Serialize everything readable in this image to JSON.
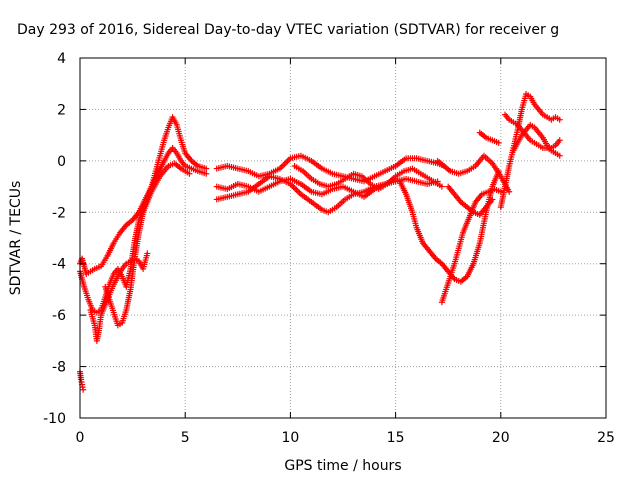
{
  "chart_data": {
    "type": "scatter",
    "title": "Day 293 of 2016, Sidereal Day-to-day VTEC variation (SDTVAR) for receiver g",
    "xlabel": "GPS time / hours",
    "ylabel": "SDTVAR / TECUs",
    "xlim": [
      0,
      25
    ],
    "ylim": [
      -10,
      4
    ],
    "x_ticks": [
      0,
      5,
      10,
      15,
      20,
      25
    ],
    "y_ticks": [
      -10,
      -8,
      -6,
      -4,
      -2,
      0,
      2,
      4
    ],
    "grid": true,
    "marker": "+",
    "color": "#ff0000",
    "series": [
      {
        "x": [
          0.0,
          0.1,
          0.2,
          0.3,
          0.5,
          0.7,
          1.0,
          1.3,
          1.6,
          1.9,
          2.2,
          2.5,
          2.8,
          3.1,
          3.4,
          3.7,
          4.0,
          4.2,
          4.4,
          4.6,
          4.8,
          5.0,
          5.3,
          5.6,
          6.0
        ],
        "y": [
          -4.0,
          -3.8,
          -4.1,
          -4.4,
          -4.3,
          -4.2,
          -4.1,
          -3.7,
          -3.2,
          -2.8,
          -2.5,
          -2.3,
          -2.0,
          -1.5,
          -1.0,
          -0.5,
          0.0,
          0.3,
          0.5,
          0.3,
          0.0,
          -0.2,
          -0.3,
          -0.4,
          -0.5
        ]
      },
      {
        "x": [
          0.0,
          0.1,
          0.2,
          0.4,
          0.6,
          0.8,
          1.0,
          1.2,
          1.4,
          1.6,
          1.8,
          2.0,
          2.2,
          2.4,
          2.6,
          2.8,
          3.0,
          3.2,
          3.4,
          3.6,
          3.8,
          4.0,
          4.2,
          4.4,
          4.6,
          4.8,
          5.0,
          5.3,
          5.6,
          6.0
        ],
        "y": [
          -4.3,
          -4.6,
          -4.9,
          -5.4,
          -5.8,
          -5.9,
          -5.8,
          -5.3,
          -4.8,
          -4.4,
          -4.2,
          -4.5,
          -4.9,
          -4.2,
          -3.1,
          -2.3,
          -1.9,
          -1.5,
          -1.0,
          -0.4,
          0.2,
          0.8,
          1.3,
          1.7,
          1.4,
          0.8,
          0.3,
          0.0,
          -0.2,
          -0.3
        ]
      },
      {
        "x": [
          0.5,
          0.7,
          0.8,
          0.9,
          1.0,
          1.2,
          1.4,
          1.6,
          1.8,
          2.0,
          2.2,
          2.4,
          2.6,
          2.8,
          3.0,
          3.2
        ],
        "y": [
          -5.8,
          -6.4,
          -7.0,
          -6.6,
          -6.0,
          -5.6,
          -5.2,
          -4.8,
          -4.5,
          -4.2,
          -4.0,
          -3.9,
          -3.8,
          -3.9,
          -4.2,
          -3.6
        ]
      },
      {
        "x": [
          1.2,
          1.4,
          1.6,
          1.8,
          2.0,
          2.2,
          2.4,
          2.6,
          2.8,
          3.0,
          3.2,
          3.4,
          3.6,
          3.8,
          4.0,
          4.2,
          4.5,
          4.8,
          5.2
        ],
        "y": [
          -4.9,
          -5.4,
          -5.9,
          -6.4,
          -6.3,
          -5.8,
          -5.0,
          -3.8,
          -2.8,
          -2.0,
          -1.6,
          -1.2,
          -0.9,
          -0.6,
          -0.4,
          -0.2,
          -0.1,
          -0.3,
          -0.5
        ]
      },
      {
        "x": [
          0.0,
          0.05,
          0.1,
          0.15
        ],
        "y": [
          -8.2,
          -8.5,
          -8.7,
          -8.9
        ]
      },
      {
        "x": [
          6.5,
          7.0,
          7.5,
          8.0,
          8.5,
          9.0,
          9.5,
          10.0,
          10.5,
          11.0,
          11.5,
          12.0,
          12.5,
          13.0,
          13.5,
          14.0,
          14.5,
          15.0,
          15.5,
          16.0,
          16.5,
          17.0,
          17.3
        ],
        "y": [
          -0.3,
          -0.2,
          -0.3,
          -0.4,
          -0.6,
          -0.5,
          -0.3,
          0.1,
          0.2,
          0.0,
          -0.3,
          -0.5,
          -0.6,
          -0.7,
          -0.8,
          -0.6,
          -0.4,
          -0.2,
          0.1,
          0.1,
          0.0,
          -0.1,
          -0.2
        ]
      },
      {
        "x": [
          6.5,
          7.0,
          7.5,
          8.0,
          8.5,
          9.0,
          9.5,
          10.0,
          10.5,
          11.0,
          11.5,
          12.0,
          12.5,
          13.0,
          13.5,
          14.0,
          14.5,
          15.0,
          15.5,
          16.0,
          16.5,
          17.0
        ],
        "y": [
          -1.0,
          -1.1,
          -0.9,
          -1.0,
          -1.2,
          -1.0,
          -0.8,
          -0.7,
          -0.9,
          -1.2,
          -1.3,
          -1.1,
          -1.0,
          -1.2,
          -1.4,
          -1.1,
          -0.9,
          -0.8,
          -0.7,
          -0.8,
          -0.9,
          -0.8
        ]
      },
      {
        "x": [
          6.5,
          7.0,
          7.5,
          8.0,
          8.5,
          9.0,
          9.5,
          10.0,
          10.5,
          11.0,
          11.5,
          11.8,
          12.2,
          12.6,
          13.0,
          13.5,
          14.0,
          14.5,
          15.0
        ],
        "y": [
          -1.5,
          -1.4,
          -1.3,
          -1.2,
          -0.9,
          -0.6,
          -0.7,
          -0.9,
          -1.3,
          -1.6,
          -1.9,
          -2.0,
          -1.8,
          -1.5,
          -1.3,
          -1.2,
          -1.0,
          -0.9,
          -0.7
        ]
      },
      {
        "x": [
          10.2,
          10.6,
          11.0,
          11.4,
          11.8,
          12.2,
          12.6,
          13.0,
          13.4,
          13.8,
          14.2,
          14.6,
          15.0,
          15.4,
          15.8,
          16.2,
          16.6,
          17.0,
          17.2
        ],
        "y": [
          -0.2,
          -0.4,
          -0.7,
          -0.9,
          -1.0,
          -0.9,
          -0.7,
          -0.5,
          -0.6,
          -0.9,
          -1.1,
          -0.9,
          -0.6,
          -0.4,
          -0.3,
          -0.5,
          -0.7,
          -0.9,
          -1.0
        ]
      },
      {
        "x": [
          15.2,
          15.5,
          15.8,
          16.0,
          16.3,
          16.6,
          16.9,
          17.2,
          17.5,
          17.8,
          18.1,
          18.4,
          18.7,
          19.0,
          19.3,
          19.6,
          19.9
        ],
        "y": [
          -0.8,
          -1.3,
          -2.0,
          -2.6,
          -3.2,
          -3.5,
          -3.8,
          -4.0,
          -4.3,
          -4.6,
          -4.7,
          -4.5,
          -4.0,
          -3.2,
          -2.0,
          -1.0,
          -0.4
        ]
      },
      {
        "x": [
          17.2,
          17.4,
          17.6,
          17.8,
          18.0,
          18.2,
          18.5,
          18.8,
          19.1,
          19.4,
          19.7,
          20.0
        ],
        "y": [
          -5.5,
          -5.0,
          -4.5,
          -4.0,
          -3.4,
          -2.8,
          -2.2,
          -1.6,
          -1.3,
          -1.2,
          -1.1,
          -1.2
        ]
      },
      {
        "x": [
          17.0,
          17.3,
          17.6,
          18.0,
          18.4,
          18.8,
          19.2,
          19.6,
          20.0,
          20.4
        ],
        "y": [
          0.0,
          -0.2,
          -0.4,
          -0.5,
          -0.4,
          -0.2,
          0.2,
          -0.1,
          -0.6,
          -1.2
        ]
      },
      {
        "x": [
          17.5,
          17.8,
          18.1,
          18.4,
          18.7,
          19.0,
          19.3,
          19.6
        ],
        "y": [
          -1.0,
          -1.3,
          -1.6,
          -1.8,
          -2.0,
          -2.1,
          -1.8,
          -1.5
        ]
      },
      {
        "x": [
          19.0,
          19.3,
          19.6,
          19.9
        ],
        "y": [
          1.1,
          0.9,
          0.8,
          0.7
        ]
      },
      {
        "x": [
          20.0,
          20.2,
          20.4,
          20.6,
          20.8,
          21.0,
          21.2,
          21.4,
          21.6,
          21.8,
          22.0,
          22.2,
          22.4,
          22.6,
          22.8
        ],
        "y": [
          -1.8,
          -1.0,
          -0.2,
          0.5,
          1.2,
          2.0,
          2.6,
          2.5,
          2.2,
          2.0,
          1.8,
          1.7,
          1.6,
          1.7,
          1.6
        ]
      },
      {
        "x": [
          20.2,
          20.4,
          20.6,
          20.8,
          21.0,
          21.2,
          21.4,
          21.6,
          21.8,
          22.0,
          22.2,
          22.4,
          22.6,
          22.8
        ],
        "y": [
          1.8,
          1.6,
          1.5,
          1.4,
          1.2,
          1.0,
          0.8,
          0.7,
          0.6,
          0.5,
          0.5,
          0.4,
          0.3,
          0.2
        ]
      },
      {
        "x": [
          20.6,
          20.8,
          21.0,
          21.2,
          21.4,
          21.6,
          21.8,
          22.0,
          22.2,
          22.4,
          22.6,
          22.8
        ],
        "y": [
          0.4,
          0.7,
          1.0,
          1.2,
          1.4,
          1.3,
          1.1,
          0.9,
          0.6,
          0.5,
          0.6,
          0.8
        ]
      }
    ]
  }
}
